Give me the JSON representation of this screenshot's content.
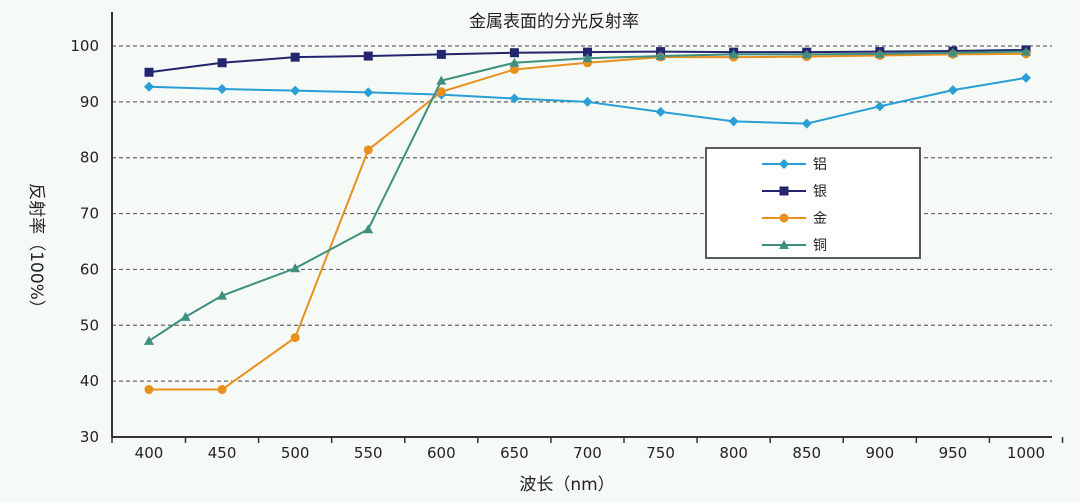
{
  "chart_data": {
    "type": "line",
    "title": "金属表面的分光反射率",
    "xlabel": "波长（nm）",
    "ylabel": "反射率（100%）",
    "xlim": [
      400,
      1000
    ],
    "ylim": [
      30,
      100
    ],
    "x_ticks": [
      400,
      450,
      500,
      550,
      600,
      650,
      700,
      750,
      800,
      850,
      900,
      950,
      1000
    ],
    "y_ticks": [
      30,
      40,
      50,
      60,
      70,
      80,
      90,
      100
    ],
    "grid": "horizontal dashed",
    "legend_position": "right-middle",
    "series": [
      {
        "name": "铝",
        "color": "#2a9fd6",
        "marker": "diamond",
        "points": [
          [
            400,
            92.7
          ],
          [
            450,
            92.3
          ],
          [
            500,
            92.0
          ],
          [
            550,
            91.7
          ],
          [
            600,
            91.3
          ],
          [
            650,
            90.6
          ],
          [
            700,
            90.0
          ],
          [
            750,
            88.2
          ],
          [
            800,
            86.5
          ],
          [
            850,
            86.1
          ],
          [
            900,
            89.2
          ],
          [
            950,
            92.1
          ],
          [
            1000,
            94.3
          ]
        ]
      },
      {
        "name": "银",
        "color": "#23256e",
        "marker": "square",
        "points": [
          [
            400,
            95.3
          ],
          [
            450,
            97.0
          ],
          [
            500,
            98.0
          ],
          [
            550,
            98.2
          ],
          [
            600,
            98.5
          ],
          [
            650,
            98.8
          ],
          [
            700,
            98.9
          ],
          [
            750,
            99.0
          ],
          [
            800,
            98.9
          ],
          [
            850,
            98.9
          ],
          [
            900,
            99.0
          ],
          [
            950,
            99.1
          ],
          [
            1000,
            99.3
          ]
        ]
      },
      {
        "name": "金",
        "color": "#e8901e",
        "marker": "circle",
        "points": [
          [
            400,
            38.5
          ],
          [
            450,
            38.5
          ],
          [
            500,
            47.8
          ],
          [
            550,
            81.4
          ],
          [
            600,
            91.8
          ],
          [
            650,
            95.8
          ],
          [
            700,
            97.0
          ],
          [
            750,
            98.0
          ],
          [
            800,
            98.0
          ],
          [
            850,
            98.1
          ],
          [
            900,
            98.3
          ],
          [
            950,
            98.5
          ],
          [
            1000,
            98.6
          ]
        ]
      },
      {
        "name": "铜",
        "color": "#3f8f80",
        "marker": "triangle",
        "points": [
          [
            400,
            47.2
          ],
          [
            425,
            51.5
          ],
          [
            450,
            55.3
          ],
          [
            500,
            60.2
          ],
          [
            550,
            67.2
          ],
          [
            600,
            93.8
          ],
          [
            650,
            97.0
          ],
          [
            700,
            97.8
          ],
          [
            750,
            98.2
          ],
          [
            800,
            98.5
          ],
          [
            850,
            98.5
          ],
          [
            900,
            98.6
          ],
          [
            950,
            98.8
          ],
          [
            1000,
            99.0
          ]
        ]
      }
    ]
  }
}
